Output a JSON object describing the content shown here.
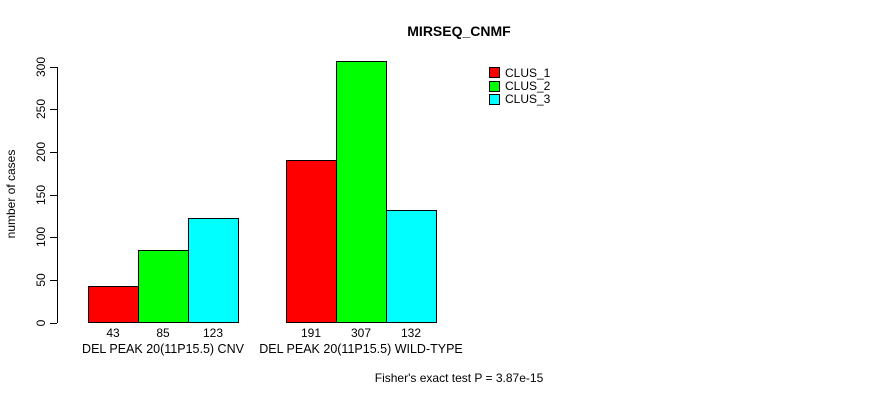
{
  "chart_data": {
    "type": "bar",
    "title": "MIRSEQ_CNMF",
    "ylabel": "number of cases",
    "xlabel": "",
    "footnote": "Fisher's exact test P = 3.87e-15",
    "categories": [
      "DEL PEAK 20(11P15.5) CNV",
      "DEL PEAK 20(11P15.5) WILD-TYPE"
    ],
    "series": [
      {
        "name": "CLUS_1",
        "color": "#ff0000",
        "values": [
          43,
          191
        ]
      },
      {
        "name": "CLUS_2",
        "color": "#00ff00",
        "values": [
          85,
          307
        ]
      },
      {
        "name": "CLUS_3",
        "color": "#00ffff",
        "values": [
          123,
          132
        ]
      }
    ],
    "yticks": [
      0,
      50,
      100,
      150,
      200,
      250,
      300
    ],
    "ylim": [
      0,
      300
    ],
    "grid": false,
    "legend_position": "top-right",
    "show_value_labels": true,
    "background_color": "#ffffff",
    "axis_color": "#000000"
  }
}
